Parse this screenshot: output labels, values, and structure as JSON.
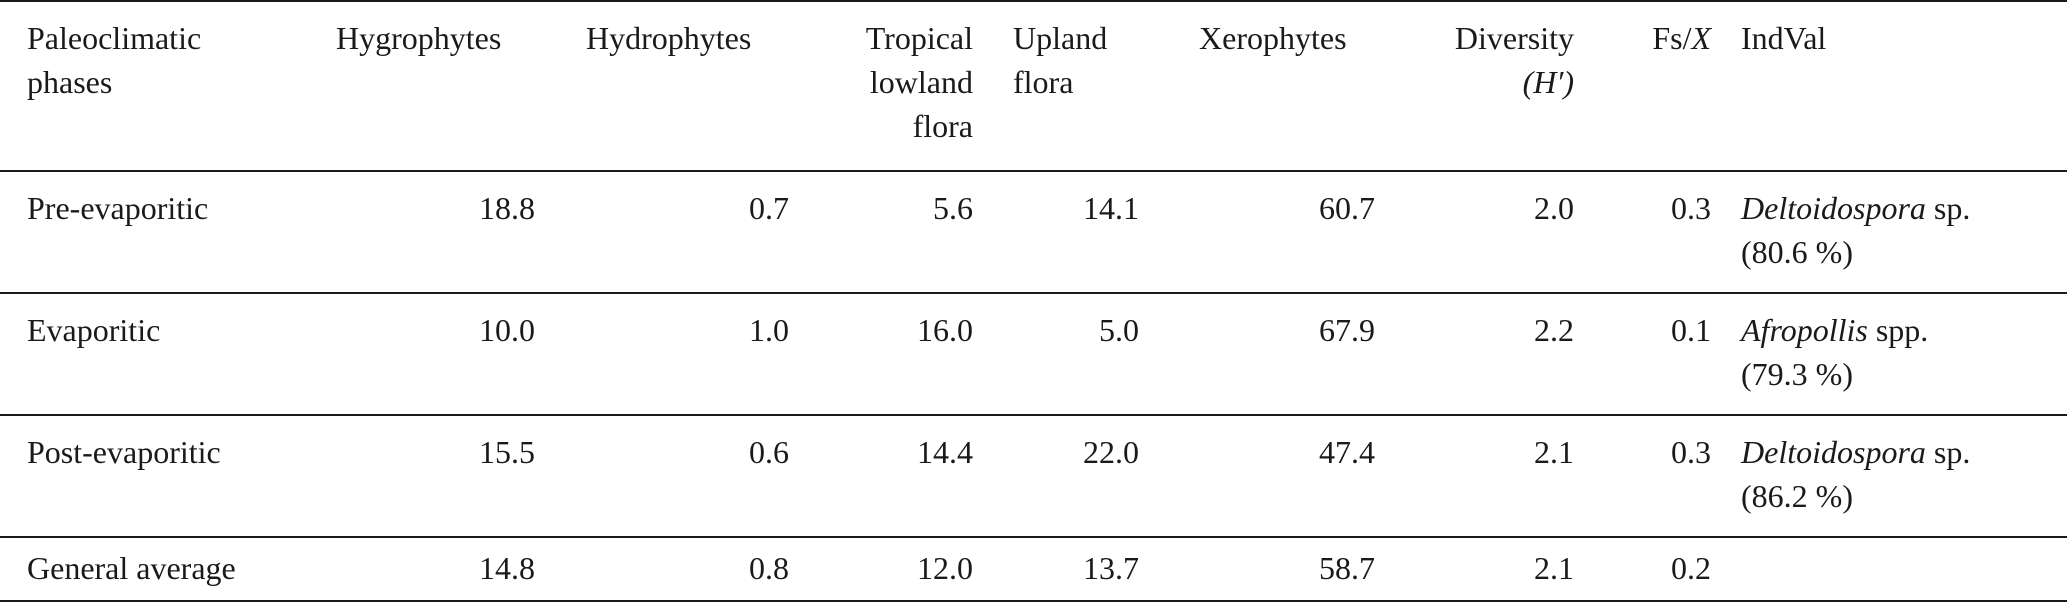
{
  "table": {
    "headers": {
      "phase": [
        "Paleoclimatic",
        "phases"
      ],
      "hygrophytes": "Hygrophytes",
      "hydrophytes": "Hydrophytes",
      "tropical": [
        "Tropical",
        "lowland",
        "flora"
      ],
      "upland": [
        "Upland",
        "flora"
      ],
      "xerophytes": "Xerophytes",
      "diversity": [
        "Diversity",
        "(H′)"
      ],
      "fs": {
        "prefix": "Fs/",
        "var": "X"
      },
      "indval": "IndVal"
    },
    "rows": [
      {
        "phase": "Pre-evaporitic",
        "hygrophytes": "18.8",
        "hydrophytes": "0.7",
        "tropical": "5.6",
        "upland": "14.1",
        "xerophytes": "60.7",
        "diversity": "2.0",
        "fs": "0.3",
        "indval_taxon": "Deltoidospora",
        "indval_suffix": " sp.",
        "indval_percent": "(80.6 %)"
      },
      {
        "phase": "Evaporitic",
        "hygrophytes": "10.0",
        "hydrophytes": "1.0",
        "tropical": "16.0",
        "upland": "5.0",
        "xerophytes": "67.9",
        "diversity": "2.2",
        "fs": "0.1",
        "indval_taxon": "Afropollis",
        "indval_suffix": " spp.",
        "indval_percent": "(79.3 %)"
      },
      {
        "phase": "Post-evaporitic",
        "hygrophytes": "15.5",
        "hydrophytes": "0.6",
        "tropical": "14.4",
        "upland": "22.0",
        "xerophytes": "47.4",
        "diversity": "2.1",
        "fs": "0.3",
        "indval_taxon": "Deltoidospora",
        "indval_suffix": " sp.",
        "indval_percent": "(86.2 %)"
      }
    ],
    "average": {
      "phase": "General average",
      "hygrophytes": "14.8",
      "hydrophytes": "0.8",
      "tropical": "12.0",
      "upland": "13.7",
      "xerophytes": "58.7",
      "diversity": "2.1",
      "fs": "0.2"
    }
  }
}
